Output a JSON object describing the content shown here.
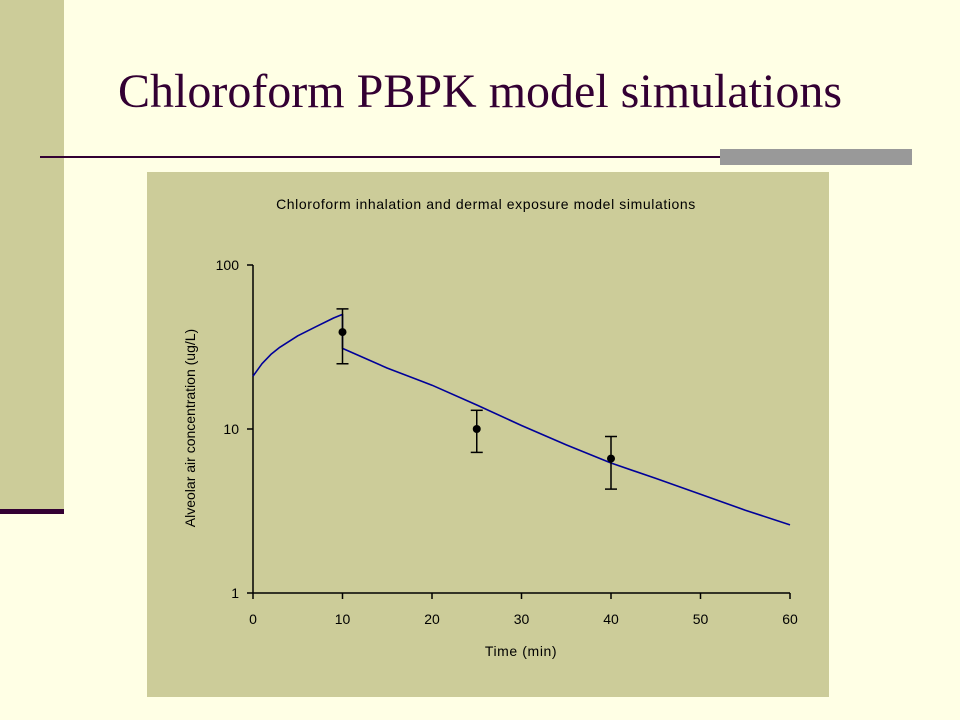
{
  "slide": {
    "title": "Chloroform PBPK model simulations",
    "colors": {
      "background": "#ffffe5",
      "band": "#cccc99",
      "accent_dark": "#330033",
      "accent_grey": "#999999",
      "chart_background": "#cccc99"
    }
  },
  "chart_data": {
    "type": "line",
    "title": "Chloroform inhalation and dermal exposure model simulations",
    "xlabel": "Time (min)",
    "ylabel": "Alveolar air concentration (ug/L)",
    "xlim": [
      0,
      60
    ],
    "ylim": [
      1,
      100
    ],
    "y_scale": "log",
    "grid": false,
    "x_ticks": [
      0,
      10,
      20,
      30,
      40,
      50,
      60
    ],
    "y_ticks": [
      1,
      10,
      100
    ],
    "series": [
      {
        "kind": "line",
        "color": "#000099",
        "points": [
          [
            0,
            21
          ],
          [
            1,
            25
          ],
          [
            2,
            28.5
          ],
          [
            3,
            31.5
          ],
          [
            5,
            37
          ],
          [
            7,
            42
          ],
          [
            9,
            47.5
          ],
          [
            10,
            50
          ],
          [
            10,
            31
          ],
          [
            15,
            23.5
          ],
          [
            20,
            18.5
          ],
          [
            25,
            14
          ],
          [
            30,
            10.5
          ],
          [
            35,
            8
          ],
          [
            40,
            6.2
          ],
          [
            45,
            5
          ],
          [
            50,
            4
          ],
          [
            55,
            3.2
          ],
          [
            60,
            2.6
          ]
        ]
      },
      {
        "kind": "points",
        "color": "#000000",
        "points": [
          {
            "x": 10,
            "y": 39,
            "low": 25,
            "high": 54
          },
          {
            "x": 25,
            "y": 10,
            "low": 7.2,
            "high": 13
          },
          {
            "x": 40,
            "y": 6.6,
            "low": 4.3,
            "high": 9
          }
        ]
      }
    ]
  }
}
